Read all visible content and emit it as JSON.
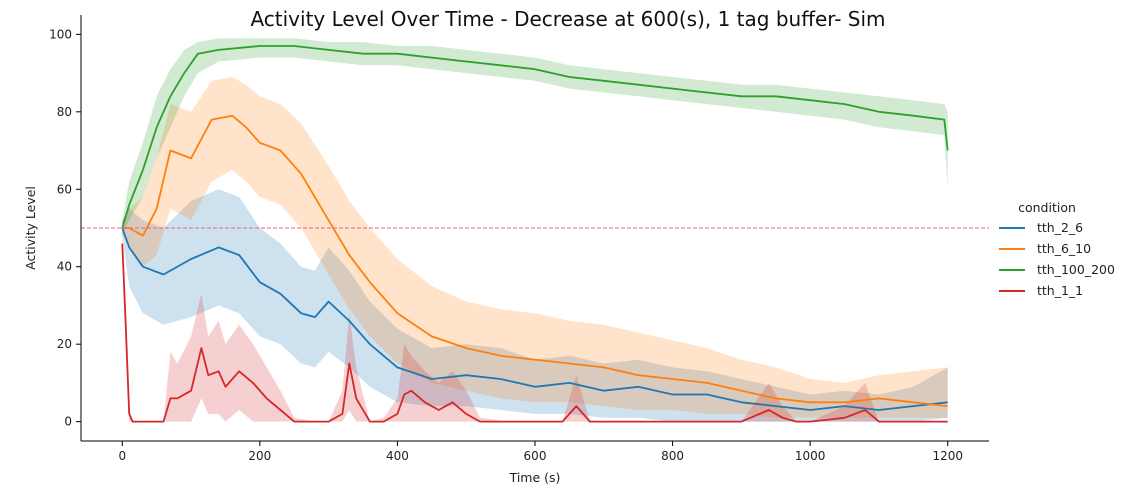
{
  "chart_data": {
    "type": "line",
    "title": "Activity Level Over Time - Decrease at 600(s), 1 tag buffer- Sim",
    "xlabel": "Time (s)",
    "ylabel": "Activity Level",
    "xlim": [
      -60,
      1260
    ],
    "ylim": [
      -5,
      105
    ],
    "xticks": [
      0,
      200,
      400,
      600,
      800,
      1000,
      1200
    ],
    "yticks": [
      0,
      20,
      40,
      60,
      80,
      100
    ],
    "grid": false,
    "legend": {
      "title": "condition",
      "position": "right"
    },
    "reference_line": {
      "y": 50,
      "style": "dashed",
      "color": "#e8608a"
    },
    "series": [
      {
        "name": "tth_2_6",
        "color": "#1f77b4",
        "x": [
          0,
          10,
          30,
          60,
          100,
          140,
          170,
          200,
          230,
          260,
          280,
          300,
          330,
          360,
          400,
          450,
          500,
          550,
          600,
          650,
          700,
          750,
          800,
          850,
          900,
          950,
          1000,
          1050,
          1100,
          1150,
          1200
        ],
        "y": [
          50,
          45,
          40,
          38,
          42,
          45,
          43,
          36,
          33,
          28,
          27,
          31,
          26,
          20,
          14,
          11,
          12,
          11,
          9,
          10,
          8,
          9,
          7,
          7,
          5,
          4,
          3,
          4,
          3,
          4,
          5
        ],
        "lower": [
          48,
          35,
          28,
          25,
          27,
          30,
          28,
          22,
          20,
          15,
          14,
          18,
          14,
          9,
          5,
          4,
          4,
          3,
          2,
          2,
          1,
          1,
          0,
          0,
          0,
          0,
          0,
          0,
          0,
          0,
          1
        ],
        "upper": [
          52,
          55,
          52,
          50,
          57,
          60,
          58,
          50,
          46,
          40,
          39,
          45,
          39,
          31,
          24,
          19,
          20,
          19,
          16,
          17,
          15,
          16,
          14,
          13,
          11,
          9,
          7,
          8,
          7,
          9,
          14
        ]
      },
      {
        "name": "tth_6_10",
        "color": "#ff7f0e",
        "x": [
          0,
          10,
          30,
          50,
          70,
          100,
          130,
          160,
          180,
          200,
          230,
          260,
          300,
          330,
          360,
          400,
          450,
          500,
          550,
          600,
          650,
          700,
          750,
          800,
          850,
          900,
          950,
          1000,
          1050,
          1100,
          1150,
          1200
        ],
        "y": [
          50,
          50,
          48,
          55,
          70,
          68,
          78,
          79,
          76,
          72,
          70,
          64,
          52,
          43,
          36,
          28,
          22,
          19,
          17,
          16,
          15,
          14,
          12,
          11,
          10,
          8,
          6,
          5,
          5,
          6,
          5,
          4
        ],
        "lower": [
          48,
          45,
          40,
          43,
          55,
          52,
          62,
          65,
          62,
          58,
          56,
          50,
          38,
          29,
          22,
          15,
          10,
          8,
          6,
          5,
          5,
          4,
          3,
          3,
          2,
          2,
          1,
          1,
          1,
          1,
          1,
          1
        ],
        "upper": [
          52,
          55,
          58,
          68,
          82,
          80,
          88,
          89,
          87,
          84,
          82,
          77,
          66,
          57,
          50,
          42,
          35,
          31,
          29,
          28,
          26,
          25,
          23,
          21,
          19,
          16,
          14,
          11,
          10,
          12,
          13,
          14
        ]
      },
      {
        "name": "tth_100_200",
        "color": "#2ca02c",
        "x": [
          0,
          10,
          30,
          50,
          70,
          90,
          110,
          140,
          200,
          250,
          300,
          350,
          400,
          450,
          500,
          550,
          600,
          650,
          700,
          750,
          800,
          850,
          900,
          950,
          1000,
          1050,
          1100,
          1150,
          1195,
          1200
        ],
        "y": [
          50,
          56,
          65,
          76,
          84,
          90,
          95,
          96,
          97,
          97,
          96,
          95,
          95,
          94,
          93,
          92,
          91,
          89,
          88,
          87,
          86,
          85,
          84,
          84,
          83,
          82,
          80,
          79,
          78,
          70
        ],
        "lower": [
          48,
          52,
          58,
          68,
          76,
          84,
          90,
          93,
          94,
          94,
          93,
          92,
          92,
          91,
          90,
          89,
          88,
          86,
          85,
          84,
          83,
          82,
          81,
          80,
          79,
          78,
          76,
          75,
          74,
          60
        ],
        "upper": [
          52,
          62,
          72,
          84,
          91,
          96,
          98,
          99,
          99,
          99,
          98,
          98,
          97,
          97,
          96,
          95,
          94,
          92,
          91,
          90,
          89,
          88,
          87,
          87,
          86,
          85,
          84,
          83,
          82,
          80
        ]
      },
      {
        "name": "tth_1_1",
        "color": "#d62728",
        "x": [
          0,
          5,
          10,
          15,
          40,
          60,
          70,
          80,
          100,
          115,
          125,
          140,
          150,
          170,
          190,
          210,
          230,
          250,
          280,
          300,
          320,
          330,
          340,
          360,
          380,
          400,
          410,
          420,
          440,
          460,
          480,
          500,
          520,
          560,
          600,
          640,
          660,
          680,
          700,
          800,
          900,
          940,
          960,
          980,
          1000,
          1050,
          1080,
          1100,
          1120,
          1200
        ],
        "y": [
          46,
          25,
          2,
          0,
          0,
          0,
          6,
          6,
          8,
          19,
          12,
          13,
          9,
          13,
          10,
          6,
          3,
          0,
          0,
          0,
          2,
          15,
          6,
          0,
          0,
          2,
          7,
          8,
          5,
          3,
          5,
          2,
          0,
          0,
          0,
          0,
          4,
          0,
          0,
          0,
          0,
          3,
          1,
          0,
          0,
          1,
          3,
          0,
          0,
          0
        ],
        "lower": [
          44,
          20,
          0,
          0,
          0,
          0,
          0,
          0,
          0,
          6,
          2,
          2,
          0,
          3,
          0,
          0,
          0,
          0,
          0,
          0,
          0,
          3,
          0,
          0,
          0,
          0,
          0,
          0,
          0,
          0,
          0,
          0,
          0,
          0,
          0,
          0,
          0,
          0,
          0,
          0,
          0,
          0,
          0,
          0,
          0,
          0,
          0,
          0,
          0,
          0
        ],
        "upper": [
          48,
          30,
          4,
          0,
          0,
          0,
          18,
          15,
          22,
          33,
          22,
          26,
          20,
          25,
          20,
          14,
          8,
          1,
          0,
          0,
          8,
          28,
          14,
          0,
          1,
          6,
          20,
          17,
          13,
          10,
          13,
          8,
          1,
          0,
          0,
          0,
          12,
          0,
          0,
          0,
          0,
          10,
          4,
          0,
          0,
          4,
          10,
          0,
          0,
          0
        ]
      }
    ]
  }
}
